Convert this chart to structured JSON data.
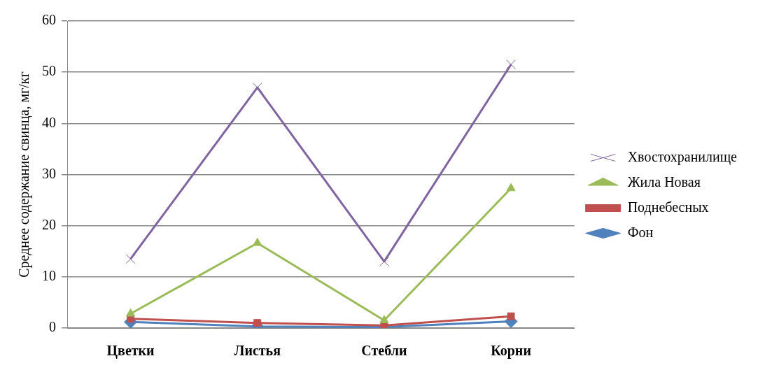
{
  "chart_data": {
    "type": "line",
    "ylabel": "Среднее содержание свинца, мг/кг",
    "categories": [
      "Цветки",
      "Листья",
      "Стебли",
      "Корни"
    ],
    "series": [
      {
        "name": "Хвостохранилище",
        "color": "#8064a2",
        "marker": "cross",
        "values": [
          13.5,
          47,
          13,
          51.5
        ]
      },
      {
        "name": "Жила Новая",
        "color": "#9bbb59",
        "marker": "triangle",
        "values": [
          2.8,
          16.6,
          1.5,
          27.3
        ]
      },
      {
        "name": "Поднебесных",
        "color": "#c0504d",
        "marker": "square",
        "values": [
          1.8,
          1.0,
          0.5,
          2.3
        ]
      },
      {
        "name": "Фон",
        "color": "#4f81bd",
        "marker": "diamond",
        "values": [
          1.2,
          0.3,
          0.2,
          1.3
        ]
      }
    ],
    "ylim": [
      0,
      60
    ],
    "yticks": [
      0,
      10,
      20,
      30,
      40,
      50,
      60
    ],
    "grid": "y",
    "legend": "right"
  }
}
